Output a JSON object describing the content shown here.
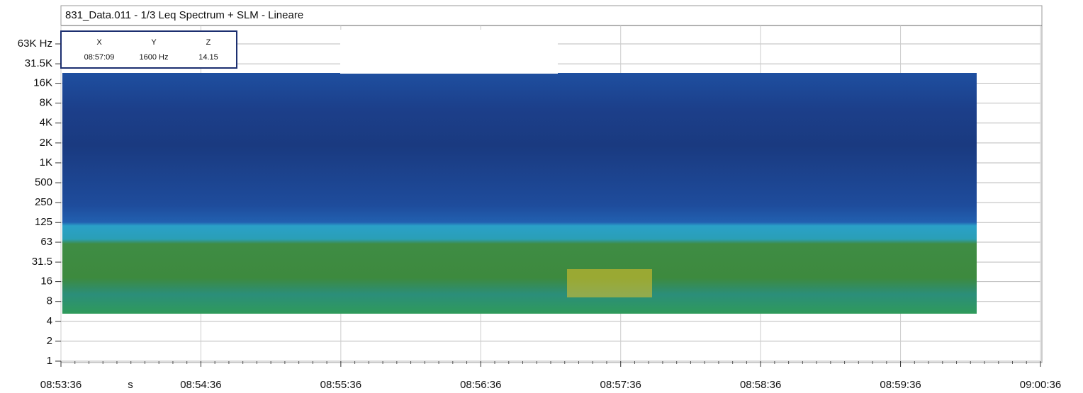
{
  "chart_data": {
    "type": "spectrogram",
    "title": "831_Data.011 - 1/3 Leq Spectrum + SLM - Lineare",
    "xlabel": "s",
    "xticks": [
      "08:53:36",
      "08:54:36",
      "08:55:36",
      "08:56:36",
      "08:57:36",
      "08:58:36",
      "08:59:36",
      "09:00:36"
    ],
    "ylog": true,
    "ylim": [
      1,
      63000
    ],
    "yticks": [
      1,
      2,
      4,
      8,
      16,
      {
        "value": 31.5,
        "label": "31.5"
      },
      63,
      125,
      250,
      500,
      {
        "value": 1000,
        "label": "1K"
      },
      {
        "value": 2000,
        "label": "2K"
      },
      {
        "value": 4000,
        "label": "4K"
      },
      {
        "value": 8000,
        "label": "8K"
      },
      {
        "value": 16000,
        "label": "16K"
      },
      {
        "value": 31500,
        "label": "31.5K"
      },
      {
        "value": 63000,
        "label": "63K Hz"
      }
    ],
    "grid": true,
    "cursor": {
      "names": [
        "X",
        "Y",
        "Z"
      ],
      "readouts": [
        "08:57:09",
        "1600 Hz",
        "14.15"
      ]
    }
  }
}
